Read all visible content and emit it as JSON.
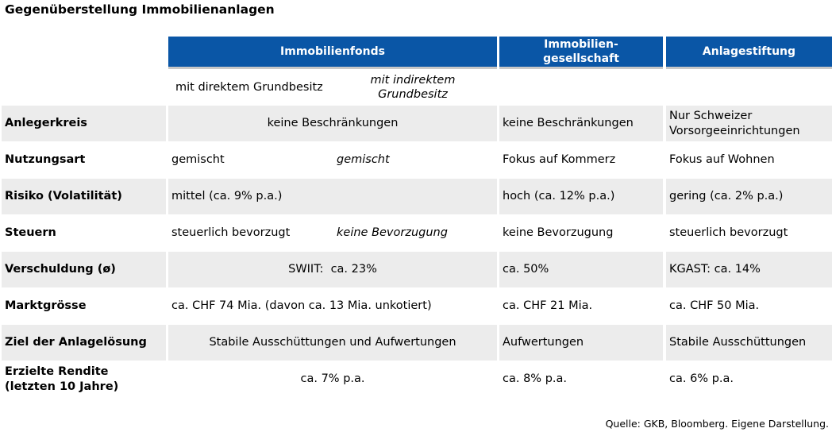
{
  "title": "Gegenüberstellung Immobilienanlagen",
  "headers": {
    "immofonds": "Immobilienfonds",
    "gesellschaft_line1": "Immobilien-",
    "gesellschaft_line2": "gesellschaft",
    "stiftung": "Anlagestiftung"
  },
  "subheaders": {
    "direkt": "mit direktem Grundbesitz",
    "indirekt_line1": "mit indirektem",
    "indirekt_line2": "Grundbesitz"
  },
  "rows": [
    {
      "label": "Anlegerkreis",
      "fonds": "keine Beschränkungen",
      "gesellschaft": "keine Beschränkungen",
      "stiftung_line1": "Nur Schweizer",
      "stiftung_line2": "Vorsorgeeinrichtungen"
    },
    {
      "label": "Nutzungsart",
      "fonds_direkt": "gemischt",
      "fonds_indirekt": "gemischt",
      "gesellschaft": "Fokus auf Kommerz",
      "stiftung": "Fokus auf Wohnen"
    },
    {
      "label": "Risiko (Volatilität)",
      "fonds": "mittel (ca. 9% p.a.)",
      "gesellschaft": "hoch (ca. 12% p.a.)",
      "stiftung": "gering (ca. 2% p.a.)"
    },
    {
      "label": "Steuern",
      "fonds_direkt": "steuerlich bevorzugt",
      "fonds_indirekt": "keine Bevorzugung",
      "gesellschaft": "keine Bevorzugung",
      "stiftung": "steuerlich bevorzugt"
    },
    {
      "label": "Verschuldung (ø)",
      "fonds": "SWIIT:  ca. 23%",
      "gesellschaft": "ca. 50%",
      "stiftung": "KGAST: ca. 14%"
    },
    {
      "label": "Marktgrösse",
      "fonds": "ca. CHF 74 Mia. (davon ca. 13 Mia. unkotiert)",
      "gesellschaft": "ca. CHF 21 Mia.",
      "stiftung": "ca. CHF 50 Mia."
    },
    {
      "label": "Ziel der Anlagelösung",
      "fonds": "Stabile Ausschüttungen und Aufwertungen",
      "gesellschaft": "Aufwertungen",
      "stiftung": "Stabile Ausschüttungen"
    },
    {
      "label_line1": "Erzielte Rendite",
      "label_line2": "(letzten 10 Jahre)",
      "fonds": "ca. 7% p.a.",
      "gesellschaft": "ca. 8% p.a.",
      "stiftung": "ca. 6% p.a."
    }
  ],
  "source": "Quelle: GKB, Bloomberg. Eigene Darstellung."
}
